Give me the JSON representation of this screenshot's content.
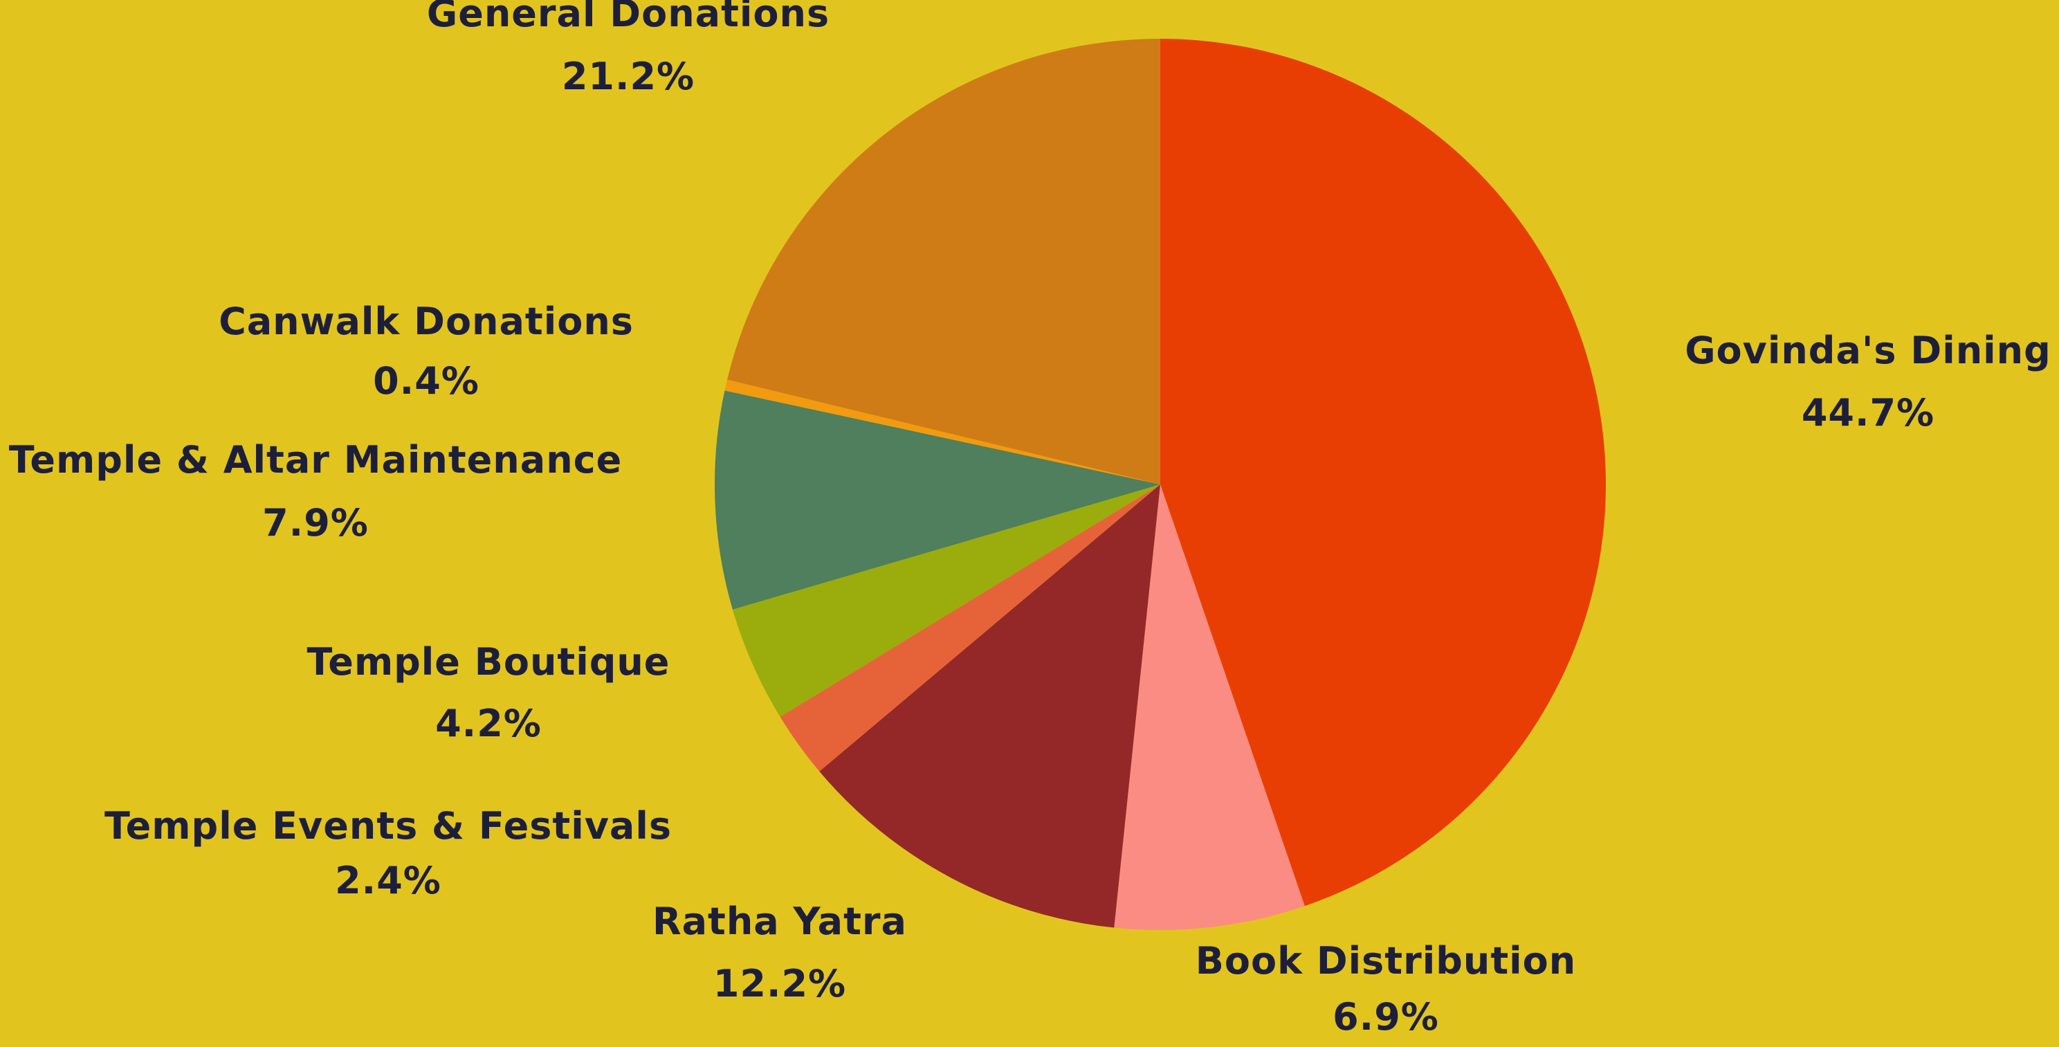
{
  "chart_data": {
    "type": "pie",
    "background_color": "#e2c41f",
    "label_color": "#1d1f3a",
    "slices": [
      {
        "label": "Govinda's Dining",
        "percent_label": "44.7%",
        "value": 44.7,
        "color": "#e83e04"
      },
      {
        "label": "Book Distribution",
        "percent_label": "6.9%",
        "value": 6.9,
        "color": "#fb8c84"
      },
      {
        "label": "Ratha Yatra",
        "percent_label": "12.2%",
        "value": 12.2,
        "color": "#942828"
      },
      {
        "label": "Temple Events & Festivals",
        "percent_label": "2.4%",
        "value": 2.4,
        "color": "#e6633a"
      },
      {
        "label": "Temple Boutique",
        "percent_label": "4.2%",
        "value": 4.2,
        "color": "#9bad0c"
      },
      {
        "label": "Temple & Altar Maintenance",
        "percent_label": "7.9%",
        "value": 7.9,
        "color": "#4f7f5c"
      },
      {
        "label": "Canwalk Donations",
        "percent_label": "0.4%",
        "value": 0.4,
        "color": "#f29a10"
      },
      {
        "label": "General Donations",
        "percent_label": "21.2%",
        "value": 21.2,
        "color": "#cf7c16"
      }
    ]
  }
}
